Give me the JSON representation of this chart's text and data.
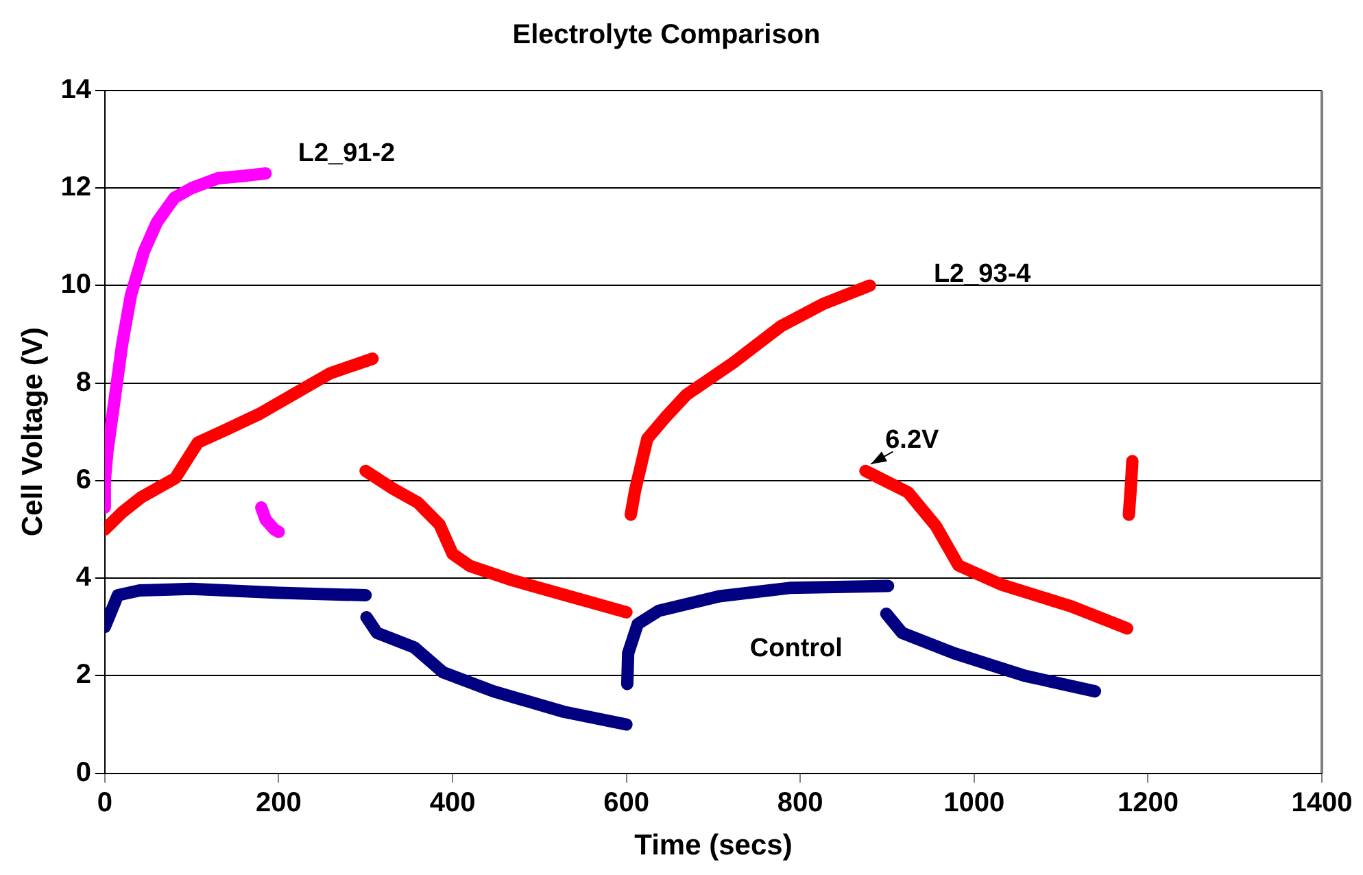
{
  "chart_data": {
    "type": "line",
    "title": "Electrolyte Comparison",
    "xlabel": "Time (secs)",
    "ylabel": "Cell Voltage (V)",
    "xlim": [
      0,
      1400
    ],
    "xticks": [
      0,
      200,
      400,
      600,
      800,
      1000,
      1200,
      1400
    ],
    "ylim": [
      0,
      14
    ],
    "yticks": [
      0,
      2,
      4,
      6,
      8,
      10,
      12,
      14
    ],
    "grid": "y",
    "legend": false,
    "annotations": [
      {
        "text": "6.2V",
        "x": 875,
        "y": 6.2
      }
    ],
    "series": [
      {
        "name": "L2_91-2",
        "color": "#ff00ff",
        "marker": "square",
        "x": [
          0,
          0,
          3,
          10,
          20,
          30,
          45,
          60,
          80,
          100,
          130,
          160,
          185,
          null,
          180,
          185,
          195,
          200
        ],
        "values": [
          5.45,
          6.0,
          6.6,
          7.5,
          8.8,
          9.8,
          10.7,
          11.3,
          11.8,
          12.0,
          12.2,
          12.25,
          12.3,
          null,
          5.45,
          5.2,
          5.0,
          4.95
        ]
      },
      {
        "name": "L2_93-4",
        "color": "#ff0000",
        "marker": "triangle",
        "x": [
          0,
          20,
          42,
          81,
          107,
          140,
          178,
          220,
          259,
          308,
          null,
          300,
          330,
          360,
          385,
          400,
          420,
          470,
          530,
          600,
          null,
          605,
          610,
          624,
          645,
          669,
          723,
          778,
          826,
          880,
          null,
          875,
          924,
          956,
          982,
          1031,
          1112,
          1176,
          null,
          1178,
          1180,
          1182
        ],
        "values": [
          5.0,
          5.35,
          5.66,
          6.05,
          6.78,
          7.05,
          7.37,
          7.8,
          8.2,
          8.5,
          null,
          6.2,
          5.85,
          5.55,
          5.1,
          4.5,
          4.25,
          3.95,
          3.65,
          3.3,
          null,
          5.3,
          5.8,
          6.86,
          7.3,
          7.76,
          8.42,
          9.17,
          9.62,
          10.0,
          null,
          6.2,
          5.76,
          5.07,
          4.26,
          3.87,
          3.42,
          2.97,
          null,
          5.3,
          5.8,
          6.4
        ]
      },
      {
        "name": "Control",
        "color": "#000080",
        "marker": "diamond",
        "x": [
          0,
          15,
          40,
          100,
          200,
          300,
          null,
          301,
          313,
          356,
          389,
          447,
          528,
          600,
          null,
          601,
          602,
          613,
          637,
          707,
          788,
          901,
          null,
          899,
          917,
          977,
          1058,
          1139
        ],
        "values": [
          3.0,
          3.65,
          3.75,
          3.78,
          3.7,
          3.65,
          null,
          3.2,
          2.88,
          2.58,
          2.07,
          1.68,
          1.26,
          1.0,
          null,
          1.83,
          2.46,
          3.06,
          3.33,
          3.63,
          3.8,
          3.84,
          null,
          3.27,
          2.88,
          2.46,
          2.0,
          1.68
        ]
      }
    ]
  }
}
